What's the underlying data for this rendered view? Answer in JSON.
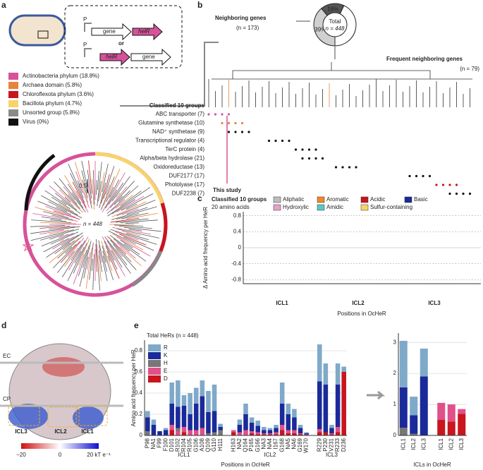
{
  "panels": [
    "a",
    "b",
    "c",
    "d",
    "e"
  ],
  "a": {
    "gene": "gene",
    "helR": "helR",
    "or": "or",
    "p": "P",
    "legend": [
      {
        "label": "Actinobacteria phylum (18.8%)",
        "color": "#d6529a"
      },
      {
        "label": "Archaea domain (5.8%)",
        "color": "#e8833a"
      },
      {
        "label": "Chloroflexota phylum (3.6%)",
        "color": "#c8151e"
      },
      {
        "label": "Bacillota phylum (4.7%)",
        "color": "#f7d36a"
      },
      {
        "label": "Unsorted group (5.8%)",
        "color": "#8a8a8a"
      },
      {
        "label": "Virus (0%)",
        "color": "#111111"
      }
    ],
    "scale": "0.5",
    "n": "n = 448"
  },
  "b": {
    "neighboring": "Neighboring genes",
    "n_neighboring": "(n = 173)",
    "frequent": "Frequent neighboring genes",
    "n_frequent": "(n = 79)",
    "groups_title": "Classified 10 groups",
    "groups": [
      {
        "label": "ABC transporter (7)",
        "color": "#d6529a"
      },
      {
        "label": "Glutamine synthetase (10)",
        "color": "#e8833a"
      },
      {
        "label": "NAD⁺ synthetase (9)",
        "color": "#111111"
      },
      {
        "label": "Transcriptional regulator (4)",
        "color": "#111111"
      },
      {
        "label": "TerC protein (4)",
        "color": "#111111"
      },
      {
        "label": "Alpha/beta hydrolase (21)",
        "color": "#111111"
      },
      {
        "label": "Oxidoreductase (13)",
        "color": "#111111"
      },
      {
        "label": "DUF2177 (17)",
        "color": "#111111"
      },
      {
        "label": "Photolyase (17)",
        "color": "#c8151e"
      },
      {
        "label": "DUF2238 (7)",
        "color": "#111111"
      }
    ],
    "this_study": "This study"
  },
  "d": {
    "ec": "EC",
    "cp": "CP",
    "icl": [
      "ICL3",
      "ICL2",
      "ICL1"
    ],
    "colorbar": [
      "−20",
      "0",
      "20 kT e⁻¹"
    ]
  },
  "chart_data": [
    {
      "type": "pie",
      "center_label": [
        "Total",
        "n = 448"
      ],
      "values": [
        39,
        18,
        43
      ],
      "value_labels": [
        "39%",
        "18%",
        null
      ],
      "colors": [
        "#d0d0d0",
        "#555555",
        "#ffffff"
      ]
    },
    {
      "type": "diverging",
      "legend_title": "Classified 10 groups",
      "legend_subtitle": "20 amino acids",
      "groups": [
        {
          "name": "Aliphatic",
          "color": "#bdbdbd"
        },
        {
          "name": "Aromatic",
          "color": "#f0882a"
        },
        {
          "name": "Acidic",
          "color": "#c8151e"
        },
        {
          "name": "Basic",
          "color": "#1a2a9a"
        },
        {
          "name": "Hydroxylic",
          "color": "#e7a0c8"
        },
        {
          "name": "Amidic",
          "color": "#58c9c3"
        },
        {
          "name": "Sulfur-containing",
          "color": "#f7d36a"
        }
      ],
      "ylabel": "Δ Amino acid frequency per HeR",
      "xlabel": "Positions in OcHeR",
      "regions": [
        "ICL1",
        "ICL2",
        "ICL3"
      ],
      "ylim": [
        -0.9,
        0.9
      ],
      "yticks": [
        -0.8,
        -0.4,
        0,
        0.4,
        0.8
      ]
    },
    {
      "type": "stacked_bar",
      "title": "Total HeRs (n = 448)",
      "categories": [
        "P98",
        "NA1",
        "F99",
        "F100",
        "D101",
        "R102",
        "R104",
        "R105",
        "G106",
        "A108",
        "Q109",
        "G110",
        "H111",
        "H163",
        "NA2",
        "Q164",
        "P165",
        "G166",
        "NA3",
        "NA4",
        "I167",
        "G168",
        "NA5",
        "NA6",
        "G169",
        "W170",
        "R229",
        "P230",
        "V231",
        "R233",
        "D236"
      ],
      "series": [
        {
          "name": "R",
          "color": "#7fa9c9",
          "values": [
            0.06,
            0.05,
            0,
            0.02,
            0.2,
            0.25,
            0.1,
            0.2,
            0.15,
            0.15,
            0.2,
            0.25,
            0.03,
            0,
            0.05,
            0.1,
            0.05,
            0.05,
            0.03,
            0.02,
            0.03,
            0.2,
            0.1,
            0.08,
            0.03,
            0.01,
            0.35,
            0.2,
            0.03,
            0.2,
            0.05
          ]
        },
        {
          "name": "K",
          "color": "#1a2a9a",
          "values": [
            0.13,
            0.1,
            0.04,
            0.05,
            0.2,
            0.2,
            0.2,
            0.15,
            0.25,
            0.3,
            0.2,
            0.2,
            0.03,
            0,
            0.07,
            0.15,
            0.08,
            0.06,
            0.03,
            0.03,
            0.04,
            0.2,
            0.15,
            0.12,
            0.05,
            0.01,
            0.45,
            0.45,
            0.05,
            0.4,
            0
          ]
        },
        {
          "name": "H",
          "color": "#777777",
          "values": [
            0.04,
            0,
            0,
            0,
            0,
            0.03,
            0,
            0,
            0,
            0,
            0.02,
            0.03,
            0.05,
            0,
            0,
            0,
            0,
            0,
            0,
            0,
            0,
            0,
            0,
            0,
            0,
            0,
            0,
            0,
            0,
            0,
            0
          ]
        },
        {
          "name": "E",
          "color": "#e0508a",
          "values": [
            0,
            0,
            0,
            0,
            0.05,
            0.04,
            0.05,
            0.05,
            0.05,
            0.07,
            0,
            0,
            0,
            0.02,
            0.03,
            0.05,
            0.02,
            0.02,
            0.01,
            0.01,
            0.02,
            0.05,
            0.03,
            0.03,
            0.01,
            0.01,
            0.03,
            0,
            0.01,
            0.05,
            0
          ]
        },
        {
          "name": "D",
          "color": "#c8151e",
          "values": [
            0,
            0,
            0,
            0,
            0.05,
            0,
            0.03,
            0,
            0,
            0,
            0,
            0,
            0,
            0.03,
            0,
            0,
            0.02,
            0.01,
            0.01,
            0.01,
            0.01,
            0.05,
            0.02,
            0.02,
            0.01,
            0,
            0.03,
            0.03,
            0.01,
            0.03,
            0.6
          ]
        }
      ],
      "groups": [
        "ICL1",
        "ICL2",
        "ICL3"
      ],
      "ylabel": "Amino acid frequency per HeR",
      "xlabel": "Positions in OcHeR",
      "ylim": [
        0,
        0.9
      ],
      "yticks": [
        0,
        0.2,
        0.4,
        0.6,
        0.8
      ]
    },
    {
      "type": "stacked_bar",
      "categories": [
        "ICL1",
        "ICL2",
        "ICL3",
        "ICL1",
        "ICL2",
        "ICL3"
      ],
      "series": [
        {
          "name": "R",
          "color": "#7fa9c9",
          "values": [
            1.5,
            0.6,
            0.9,
            0,
            0,
            0
          ]
        },
        {
          "name": "K",
          "color": "#1a2a9a",
          "values": [
            1.3,
            0.6,
            1.9,
            0,
            0,
            0
          ]
        },
        {
          "name": "H",
          "color": "#777777",
          "values": [
            0.25,
            0.05,
            0,
            0,
            0,
            0
          ]
        },
        {
          "name": "E",
          "color": "#e0508a",
          "values": [
            0,
            0,
            0,
            0.55,
            0.55,
            0.15
          ]
        },
        {
          "name": "D",
          "color": "#c8151e",
          "values": [
            0,
            0,
            0,
            0.5,
            0.45,
            0.7
          ]
        }
      ],
      "xlabel": "ICLs in OcHeR",
      "ylim": [
        0,
        3.3
      ],
      "yticks": [
        0,
        1,
        2,
        3
      ]
    }
  ]
}
